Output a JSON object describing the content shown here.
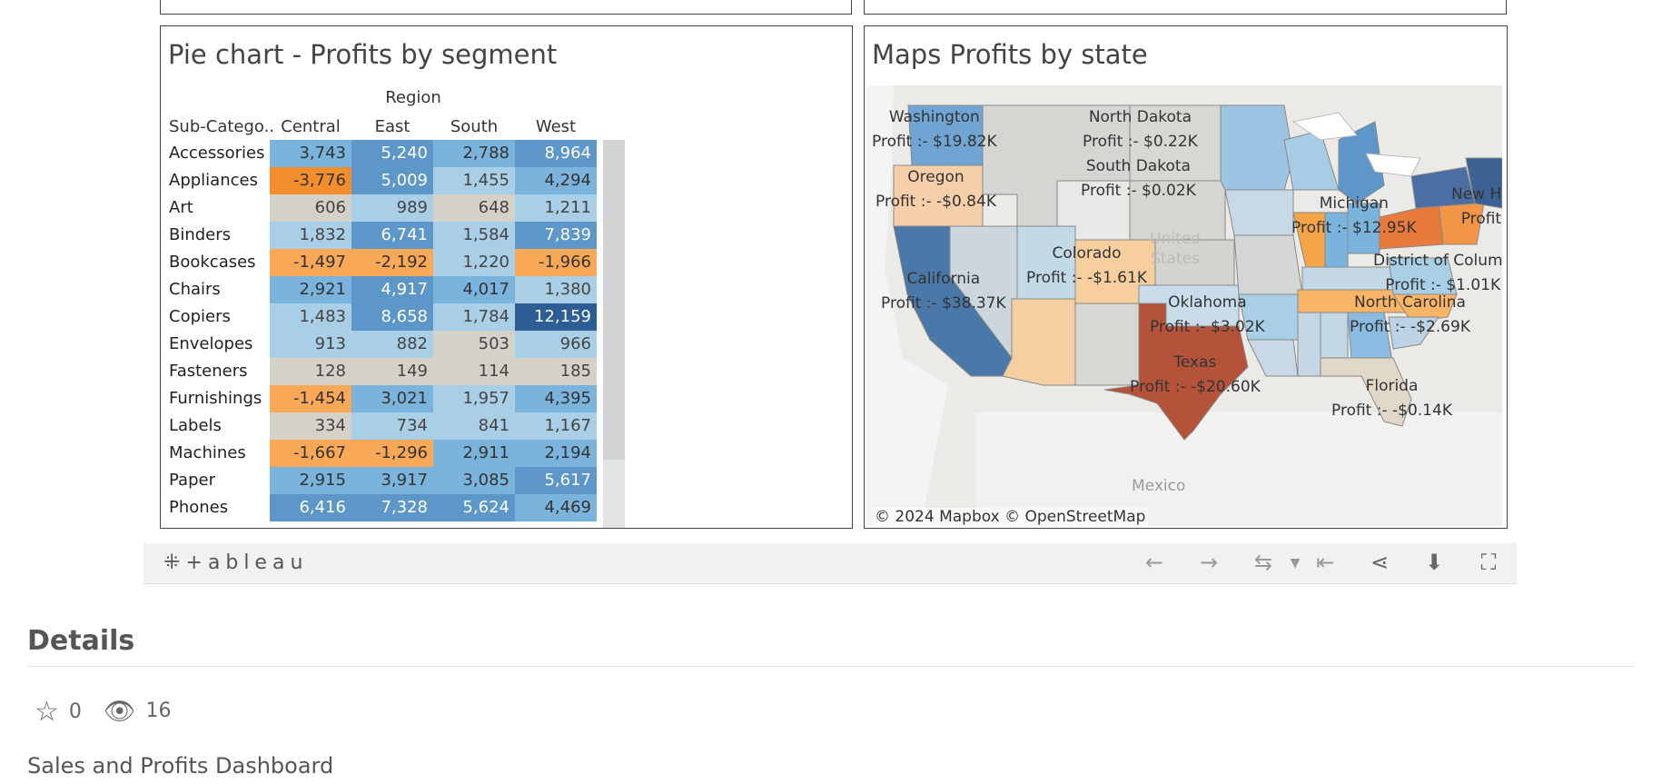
{
  "left_panel": {
    "title": "Pie chart - Profits by segment",
    "column_group": "Region",
    "row_header": "Sub-Catego..",
    "columns": [
      "Central",
      "East",
      "South",
      "West"
    ],
    "rows": [
      {
        "label": "Accessories",
        "values": [
          "3,743",
          "5,240",
          "2,788",
          "8,964"
        ]
      },
      {
        "label": "Appliances",
        "values": [
          "-3,776",
          "5,009",
          "1,455",
          "4,294"
        ]
      },
      {
        "label": "Art",
        "values": [
          "606",
          "989",
          "648",
          "1,211"
        ]
      },
      {
        "label": "Binders",
        "values": [
          "1,832",
          "6,741",
          "1,584",
          "7,839"
        ]
      },
      {
        "label": "Bookcases",
        "values": [
          "-1,497",
          "-2,192",
          "1,220",
          "-1,966"
        ]
      },
      {
        "label": "Chairs",
        "values": [
          "2,921",
          "4,917",
          "4,017",
          "1,380"
        ]
      },
      {
        "label": "Copiers",
        "values": [
          "1,483",
          "8,658",
          "1,784",
          "12,159"
        ]
      },
      {
        "label": "Envelopes",
        "values": [
          "913",
          "882",
          "503",
          "966"
        ]
      },
      {
        "label": "Fasteners",
        "values": [
          "128",
          "149",
          "114",
          "185"
        ]
      },
      {
        "label": "Furnishings",
        "values": [
          "-1,454",
          "3,021",
          "1,957",
          "4,395"
        ]
      },
      {
        "label": "Labels",
        "values": [
          "334",
          "734",
          "841",
          "1,167"
        ]
      },
      {
        "label": "Machines",
        "values": [
          "-1,667",
          "-1,296",
          "2,911",
          "2,194"
        ]
      },
      {
        "label": "Paper",
        "values": [
          "2,915",
          "3,917",
          "3,085",
          "5,617"
        ]
      },
      {
        "label": "Phones",
        "values": [
          "6,416",
          "7,328",
          "5,624",
          "4,469"
        ]
      }
    ]
  },
  "right_panel": {
    "title": "Maps Profits by state",
    "states": [
      {
        "name": "Washington",
        "profit": "Profit :- $19.82K"
      },
      {
        "name": "Oregon",
        "profit": "Profit :- -$0.84K"
      },
      {
        "name": "California",
        "profit": "Profit :- $38.37K"
      },
      {
        "name": "North Dakota",
        "profit": "Profit :- $0.22K"
      },
      {
        "name": "South Dakota",
        "profit": "Profit :- $0.02K"
      },
      {
        "name": "Colorado",
        "profit": "Profit :- -$1.61K"
      },
      {
        "name": "Oklahoma",
        "profit": "Profit :- $3.02K"
      },
      {
        "name": "Texas",
        "profit": "Profit :- -$20.60K"
      },
      {
        "name": "Michigan",
        "profit": "Profit :- $12.95K"
      },
      {
        "name": "New H..",
        "profit": "Profit"
      },
      {
        "name": "District of Colum..",
        "profit": "Profit :- $1.01K"
      },
      {
        "name": "North Carolina",
        "profit": "Profit :- -$2.69K"
      },
      {
        "name": "Florida",
        "profit": "Profit :- -$0.14K"
      }
    ],
    "country_label": "United States",
    "mexico_label": "Mexico",
    "copyright": "© 2024 Mapbox  © OpenStreetMap"
  },
  "toolbar": {
    "logo": "+ableau",
    "icons": [
      "undo-icon",
      "redo-icon",
      "revert-icon",
      "dropdown-icon",
      "reset-icon",
      "share-icon",
      "download-icon",
      "fullscreen-icon"
    ]
  },
  "details": {
    "heading": "Details",
    "favorites": "0",
    "views": "16",
    "description": "Sales and Profits Dashboard"
  },
  "colors": {
    "strong_negative": "#f28e2c",
    "negative": "#f9a857",
    "neutral": "#d3d1c8",
    "light_blue": "#a9cfe6",
    "mid_blue": "#7ab4dd",
    "blue": "#5d97c9",
    "dark_blue": "#2c5d94",
    "map_texas": "#b5533a",
    "map_orange": "#e87a3c"
  }
}
